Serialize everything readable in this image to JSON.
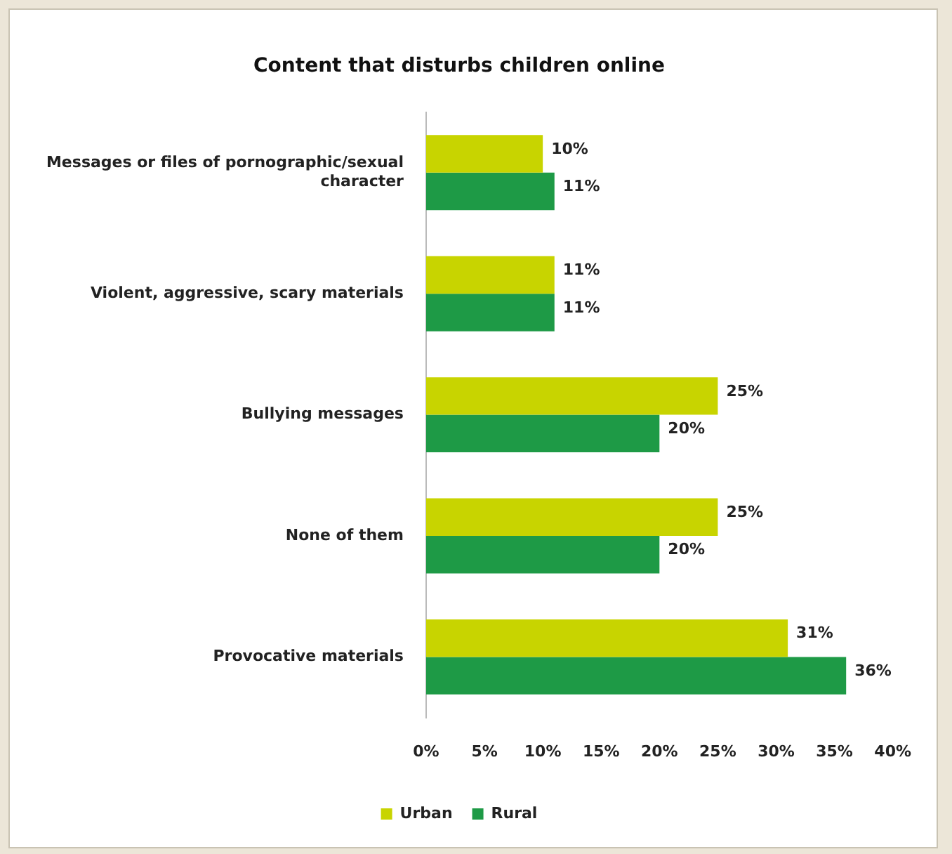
{
  "chart_data": {
    "type": "bar",
    "orientation": "horizontal",
    "title": "Content that disturbs children online",
    "categories": [
      "Messages or files of pornographic/sexual character",
      "Violent, aggressive, scary materials",
      "Bullying messages",
      "None of them",
      "Provocative materials"
    ],
    "series": [
      {
        "name": "Urban",
        "color": "#c8d400",
        "values": [
          10,
          11,
          25,
          25,
          31
        ],
        "value_labels": [
          "10%",
          "11%",
          "25%",
          "25%",
          "31%"
        ]
      },
      {
        "name": "Rural",
        "color": "#1e9a46",
        "values": [
          11,
          11,
          20,
          20,
          36
        ],
        "value_labels": [
          "11%",
          "11%",
          "20%",
          "20%",
          "36%"
        ]
      }
    ],
    "xlim": [
      0,
      40
    ],
    "xticks": [
      {
        "value": 0,
        "label": "0%"
      },
      {
        "value": 5,
        "label": "5%"
      },
      {
        "value": 10,
        "label": "10%"
      },
      {
        "value": 15,
        "label": "15%"
      },
      {
        "value": 20,
        "label": "20%"
      },
      {
        "value": 25,
        "label": "25%"
      },
      {
        "value": 30,
        "label": "30%"
      },
      {
        "value": 35,
        "label": "35%"
      },
      {
        "value": 40,
        "label": "40%"
      }
    ],
    "grid": false,
    "legend": "bottom"
  }
}
